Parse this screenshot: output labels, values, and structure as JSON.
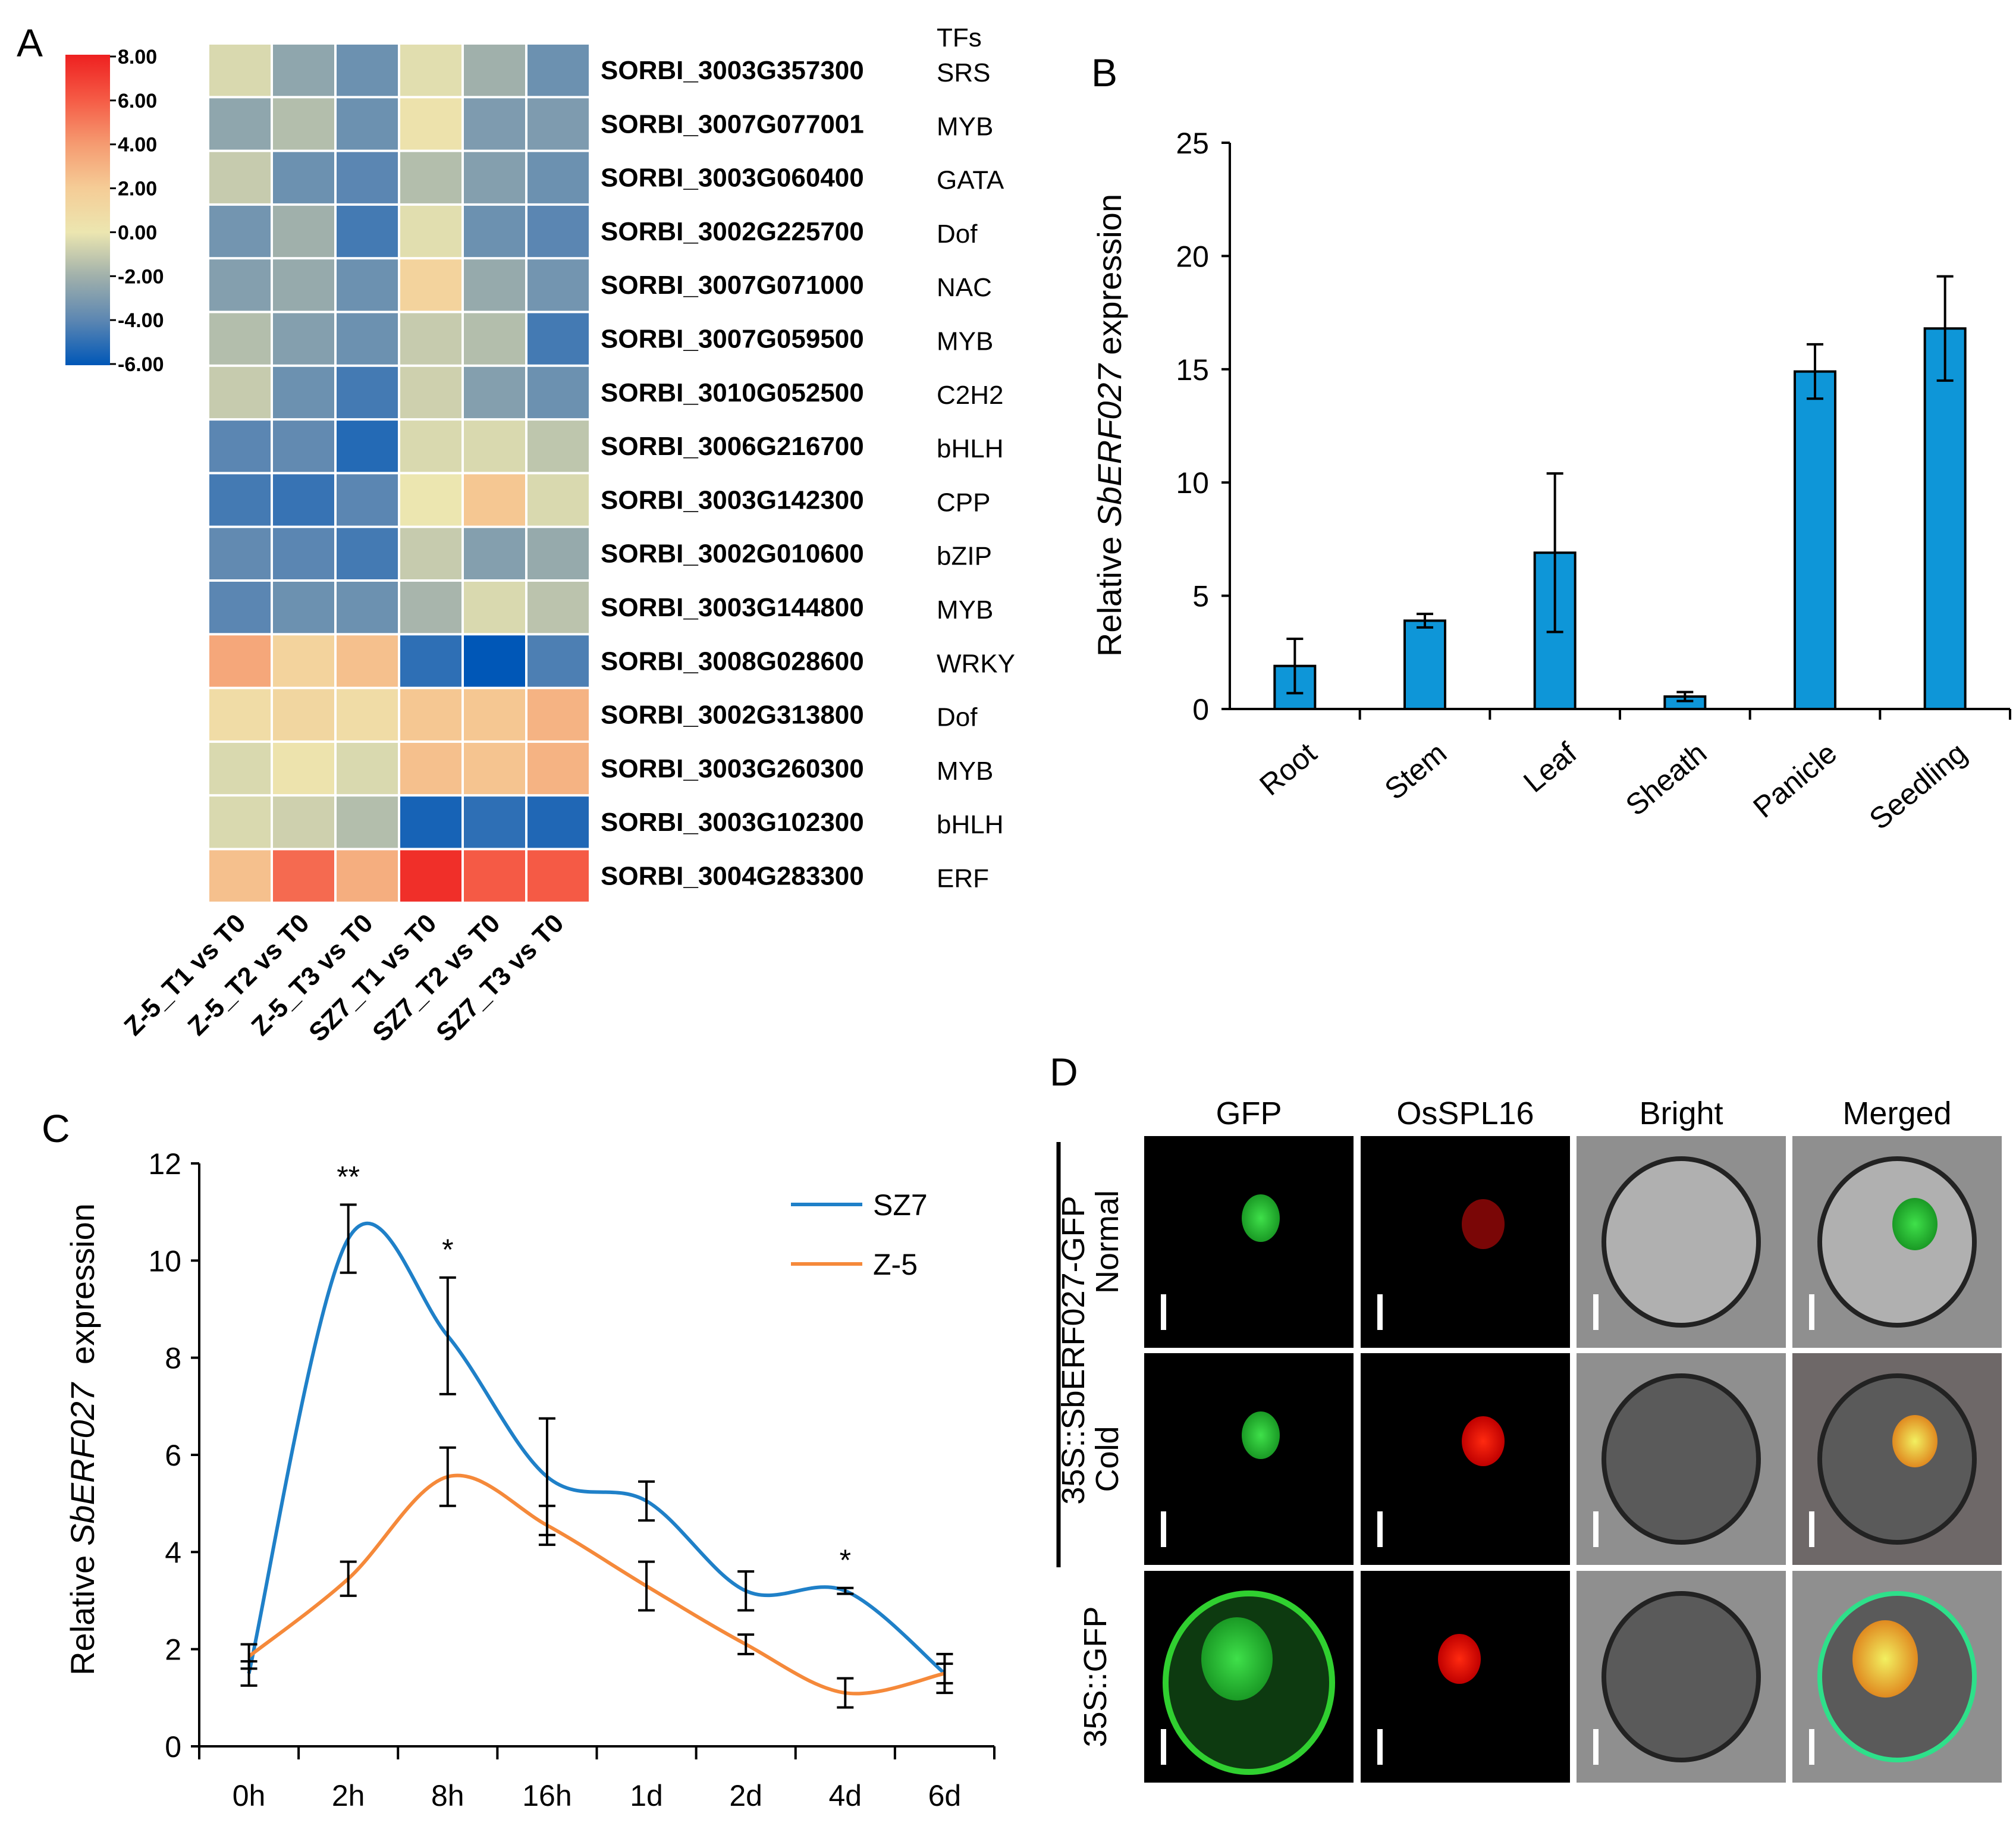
{
  "panels": {
    "a": "A",
    "b": "B",
    "c": "C",
    "d": "D"
  },
  "chart_data": [
    {
      "type": "heatmap",
      "panel": "A",
      "columns": [
        "Z-5_T1 vs T0",
        "Z-5_T2 vs T0",
        "Z-5_T3 vs T0",
        "SZ7_T1 vs T0",
        "SZ7_T2 vs T0",
        "SZ7_T3 vs T0"
      ],
      "tf_header": "TFs",
      "rows": [
        {
          "gene": "SORBI_3003G357300",
          "tf": "SRS",
          "values": [
            -0.5,
            -2.5,
            -3.5,
            -0.3,
            -2.0,
            -3.5
          ]
        },
        {
          "gene": "SORBI_3007G077001",
          "tf": "MYB",
          "values": [
            -2.5,
            -1.5,
            -3.5,
            0.3,
            -3.0,
            -3.0
          ]
        },
        {
          "gene": "SORBI_3003G060400",
          "tf": "GATA",
          "values": [
            -1.0,
            -3.5,
            -4.0,
            -1.5,
            -2.8,
            -3.5
          ]
        },
        {
          "gene": "SORBI_3002G225700",
          "tf": "Dof",
          "values": [
            -3.3,
            -2.0,
            -4.5,
            -0.3,
            -3.5,
            -4.0
          ]
        },
        {
          "gene": "SORBI_3007G071000",
          "tf": "NAC",
          "values": [
            -2.8,
            -2.3,
            -3.5,
            1.5,
            -2.3,
            -3.3
          ]
        },
        {
          "gene": "SORBI_3007G059500",
          "tf": "MYB",
          "values": [
            -1.5,
            -2.8,
            -3.5,
            -1.0,
            -1.5,
            -4.5
          ]
        },
        {
          "gene": "SORBI_3010G052500",
          "tf": "C2H2",
          "values": [
            -1.0,
            -3.5,
            -4.5,
            -0.8,
            -2.8,
            -3.5
          ]
        },
        {
          "gene": "SORBI_3006G216700",
          "tf": "bHLH",
          "values": [
            -4.0,
            -3.8,
            -5.2,
            -0.5,
            -0.5,
            -1.2
          ]
        },
        {
          "gene": "SORBI_3003G142300",
          "tf": "CPP",
          "values": [
            -4.5,
            -4.8,
            -4.0,
            0.0,
            2.2,
            -0.5
          ]
        },
        {
          "gene": "SORBI_3002G010600",
          "tf": "bZIP",
          "values": [
            -3.8,
            -4.0,
            -4.5,
            -1.0,
            -2.8,
            -2.3
          ]
        },
        {
          "gene": "SORBI_3003G144800",
          "tf": "MYB",
          "values": [
            -4.0,
            -3.5,
            -3.5,
            -1.8,
            -0.5,
            -1.3
          ]
        },
        {
          "gene": "SORBI_3008G028600",
          "tf": "WRKY",
          "values": [
            3.5,
            1.5,
            2.5,
            -5.0,
            -6.0,
            -4.3
          ]
        },
        {
          "gene": "SORBI_3002G313800",
          "tf": "Dof",
          "values": [
            0.8,
            1.2,
            0.8,
            2.2,
            2.2,
            3.0
          ]
        },
        {
          "gene": "SORBI_3003G260300",
          "tf": "MYB",
          "values": [
            -0.5,
            0.2,
            -0.5,
            2.5,
            2.3,
            3.0
          ]
        },
        {
          "gene": "SORBI_3003G102300",
          "tf": "bHLH",
          "values": [
            -0.5,
            -0.8,
            -1.5,
            -5.5,
            -5.0,
            -5.3
          ]
        },
        {
          "gene": "SORBI_3004G283300",
          "tf": "ERF",
          "values": [
            2.5,
            5.5,
            3.2,
            7.5,
            6.0,
            6.0
          ]
        }
      ],
      "colorbar": {
        "min": -6,
        "max": 8,
        "ticks": [
          "8.00",
          "6.00",
          "4.00",
          "2.00",
          "0.00",
          "-2.00",
          "-4.00",
          "-6.00"
        ],
        "colors": [
          "#0057b7",
          "#5b86b2",
          "#a0b0ab",
          "#ece6b0",
          "#f5cc96",
          "#f59a70",
          "#f55a45",
          "#ee2020"
        ]
      }
    },
    {
      "type": "bar",
      "panel": "B",
      "categories": [
        "Root",
        "Stem",
        "Leaf",
        "Sheath",
        "Panicle",
        "Seedling"
      ],
      "values": [
        1.9,
        3.9,
        6.9,
        0.55,
        14.9,
        16.8
      ],
      "errors": [
        1.2,
        0.3,
        3.5,
        0.2,
        1.2,
        2.3
      ],
      "ylabel_pre": "Relative ",
      "ylabel_gene": "SbERF027",
      "ylabel_post": " expression",
      "ylim": [
        0,
        25
      ],
      "yticks": [
        "0",
        "5",
        "10",
        "15",
        "20",
        "25"
      ],
      "color": "#0e96d8"
    },
    {
      "type": "line",
      "panel": "C",
      "categories": [
        "0h",
        "2h",
        "8h",
        "16h",
        "1d",
        "2d",
        "4d",
        "6d"
      ],
      "series": [
        {
          "name": "SZ7",
          "color": "#1f80c8",
          "values": [
            1.5,
            10.45,
            8.45,
            5.55,
            5.05,
            3.2,
            3.2,
            1.5
          ],
          "errors": [
            0.25,
            0.7,
            1.2,
            1.2,
            0.4,
            0.4,
            0.06,
            0.4
          ]
        },
        {
          "name": "Z-5",
          "color": "#f5893a",
          "values": [
            1.85,
            3.45,
            5.55,
            4.55,
            3.3,
            2.1,
            1.1,
            1.5
          ],
          "errors": [
            0.25,
            0.35,
            0.6,
            0.4,
            0.5,
            0.2,
            0.3,
            0.2
          ]
        }
      ],
      "annotations": [
        {
          "x": "2h",
          "text": "**"
        },
        {
          "x": "8h",
          "text": "*"
        },
        {
          "x": "4d",
          "text": "*"
        }
      ],
      "ylabel_pre": "Relative ",
      "ylabel_gene": "SbERF027",
      "ylabel_post": "  expression",
      "ylim": [
        0,
        12
      ],
      "yticks": [
        "0",
        "2",
        "4",
        "6",
        "8",
        "10",
        "12"
      ],
      "legend": "top-right"
    }
  ],
  "microscopy": {
    "columns": [
      "GFP",
      "OsSPL16",
      "Bright",
      "Merged"
    ],
    "group_label": "35S::SbERF027-GFP",
    "rows": [
      "Normal",
      "Cold",
      "35S::GFP"
    ]
  }
}
